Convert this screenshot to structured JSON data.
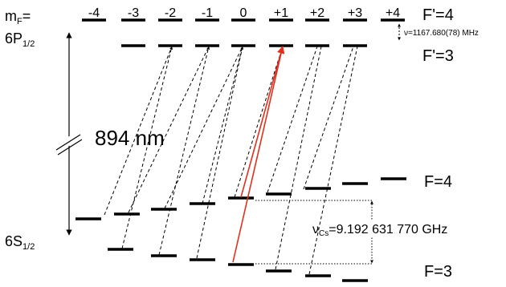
{
  "mf_label": "m",
  "mf_sub": "F",
  "mf_eq": "=",
  "mf_values": [
    "-4",
    "-3",
    "-2",
    "-1",
    "0",
    "+1",
    "+2",
    "+3",
    "+4"
  ],
  "upper_state": {
    "main": "6P",
    "sub": "1/2"
  },
  "lower_state": {
    "main": "6S",
    "sub": "1/2"
  },
  "level_labels": {
    "f_prime_4": "F'=4",
    "f_prime_3": "F'=3",
    "f_4": "F=4",
    "f_3": "F=3"
  },
  "wavelength": "894 nm",
  "upper_splitting": "ν=1167.680(78) MHz",
  "clock": {
    "nu": "ν",
    "sub": "Cs",
    "value": "=9.192 631 770 GHz"
  },
  "colors": {
    "line": "#000000",
    "highlight": "#e0301e"
  }
}
